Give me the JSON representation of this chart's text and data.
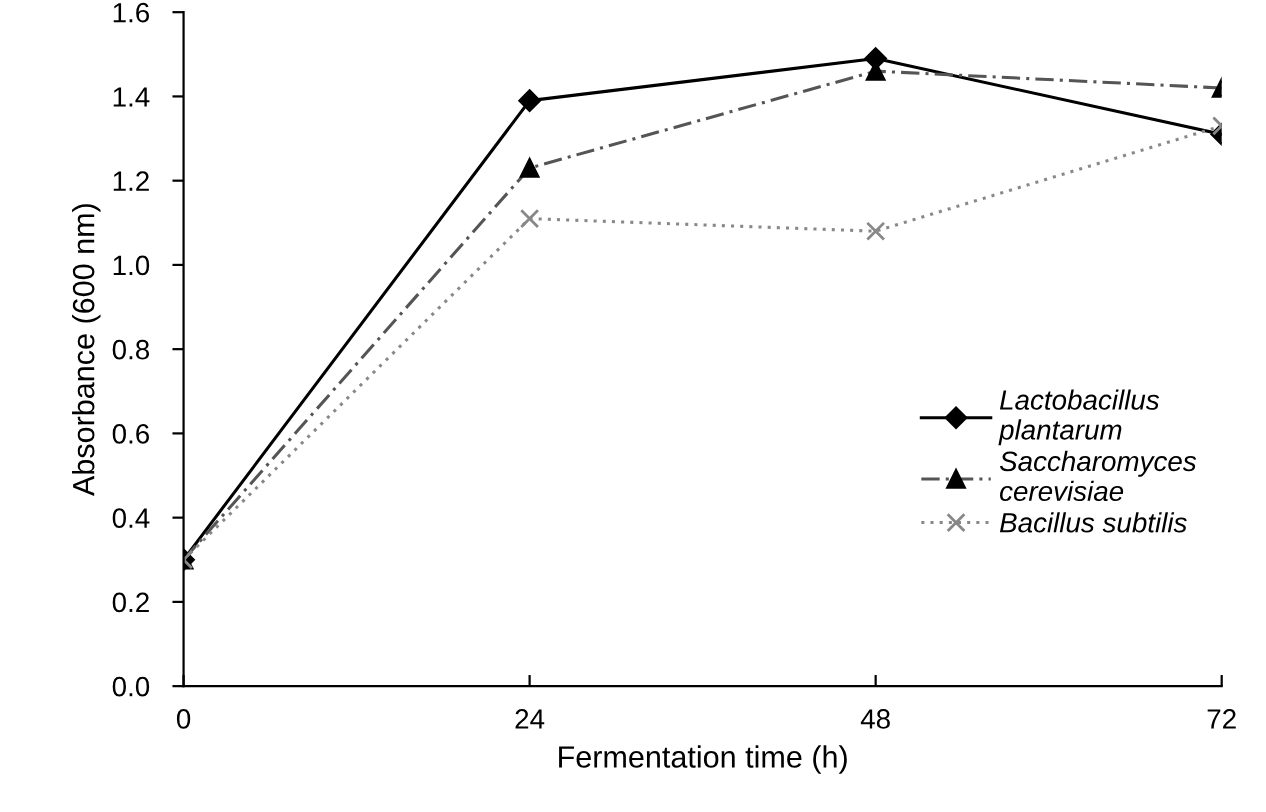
{
  "chart_data": {
    "type": "line",
    "xlabel": "Fermentation time (h)",
    "ylabel": "Absorbance (600 nm)",
    "x": [
      0,
      24,
      48,
      72
    ],
    "series": [
      {
        "name": "Lactobacillus plantarum",
        "color": "#000000",
        "values": [
          0.3,
          1.39,
          1.49,
          1.31
        ],
        "marker": "diamond",
        "line_style": "solid"
      },
      {
        "name": "Saccharomyces cerevisiae",
        "color": "#555555",
        "values": [
          0.3,
          1.23,
          1.46,
          1.42
        ],
        "marker": "triangle",
        "line_style": "dashed"
      },
      {
        "name": "Bacillus subtilis",
        "color": "#888888",
        "values": [
          0.3,
          1.11,
          1.08,
          1.33
        ],
        "marker": "cross",
        "line_style": "dotted"
      }
    ],
    "xlim": [
      0,
      72
    ],
    "xticks": [
      0,
      24,
      48,
      72
    ],
    "ylim": [
      0,
      1.6
    ],
    "yticks": [
      {
        "value": 0,
        "label": "0.0"
      },
      {
        "value": 0.2,
        "label": "0.2"
      },
      {
        "value": 0.4,
        "label": "0.4"
      },
      {
        "value": 0.6,
        "label": "0.6"
      },
      {
        "value": 0.8,
        "label": "0.8"
      },
      {
        "value": 1.0,
        "label": "1.0"
      },
      {
        "value": 1.2,
        "label": "1.2"
      },
      {
        "value": 1.4,
        "label": "1.4"
      },
      {
        "value": 1.6,
        "label": "1.6"
      }
    ],
    "grid": false,
    "legend": "right"
  }
}
